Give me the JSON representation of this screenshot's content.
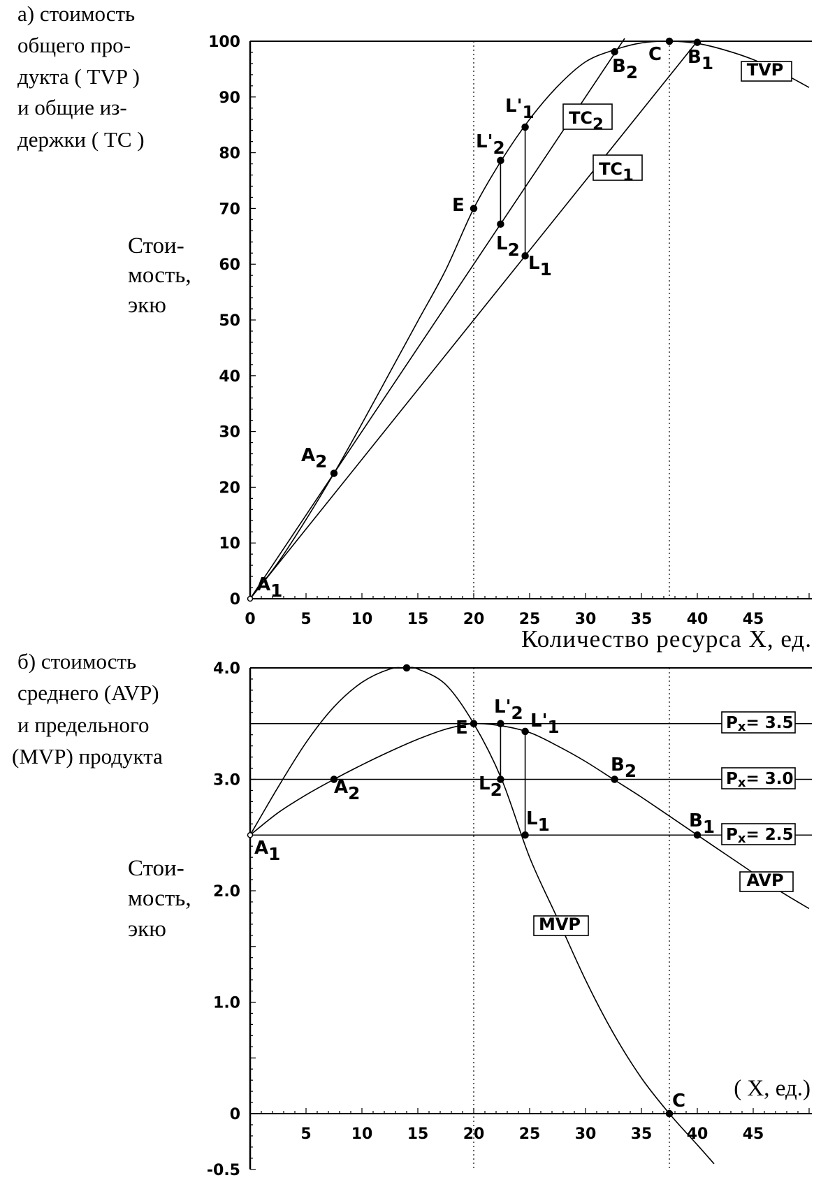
{
  "chart_data": [
    {
      "id": "top",
      "type": "line",
      "panel_title_lines": [
        "а)  стоимость",
        "общего про-",
        "дукта ( TVP )",
        "и  общие  из-",
        "держки ( TC )"
      ],
      "ylabel_lines": [
        "Стои-",
        "мость,",
        "экю"
      ],
      "xlabel": "Количество  ресурса  X,  ед.",
      "xlim": [
        0,
        50
      ],
      "ylim": [
        0,
        100
      ],
      "xticks": [
        0,
        5,
        10,
        15,
        20,
        25,
        30,
        35,
        40,
        45
      ],
      "yticks": [
        0,
        10,
        20,
        30,
        40,
        50,
        60,
        70,
        80,
        90,
        100
      ],
      "ytick_labels": [
        "0",
        "10",
        "20",
        "30",
        "40",
        "50",
        "60",
        "70",
        "80",
        "90",
        "100"
      ],
      "vlines": [
        20,
        37.5
      ],
      "series": [
        {
          "name": "TVP",
          "x": [
            0,
            2.5,
            5,
            7.5,
            10,
            12.5,
            15,
            17.5,
            20,
            22.5,
            25,
            27.5,
            30,
            32.5,
            35,
            37.5,
            40,
            42.5,
            45,
            47.5,
            50
          ],
          "values": [
            0,
            6.5,
            14.2,
            22.5,
            31.4,
            40.6,
            49.8,
            59.0,
            70.0,
            78.7,
            86.0,
            91.9,
            96.3,
            98.4,
            99.7,
            100,
            99.6,
            98.4,
            96.7,
            94.4,
            91.7
          ]
        },
        {
          "name": "TC₂",
          "x": [
            0,
            33.5
          ],
          "values": [
            0,
            100.5
          ]
        },
        {
          "name": "TC₁",
          "x": [
            0,
            40
          ],
          "values": [
            0,
            100
          ]
        }
      ],
      "points": [
        {
          "label": "A₁",
          "x": 0,
          "y": 0
        },
        {
          "label": "A₂",
          "x": 7.5,
          "y": 22.5
        },
        {
          "label": "E",
          "x": 20,
          "y": 70
        },
        {
          "label": "L₂'",
          "x": 22.4,
          "y": 78.6
        },
        {
          "label": "L₂",
          "x": 22.4,
          "y": 67.2
        },
        {
          "label": "L₁'",
          "x": 24.6,
          "y": 84.6
        },
        {
          "label": "L₁",
          "x": 24.6,
          "y": 61.5
        },
        {
          "label": "B₂",
          "x": 32.6,
          "y": 98.1
        },
        {
          "label": "C",
          "x": 37.5,
          "y": 100
        },
        {
          "label": "B₁",
          "x": 40,
          "y": 99.8
        }
      ],
      "segments": [
        [
          22.4,
          67.2,
          22.4,
          78.6
        ],
        [
          24.6,
          61.5,
          24.6,
          84.6
        ]
      ],
      "legend_boxes": [
        "TVP",
        "TC₂",
        "TC₁"
      ]
    },
    {
      "id": "bottom",
      "type": "line",
      "panel_title_lines": [
        "б)  стоимость",
        "среднего (AVP)",
        "и  предельного",
        "(MVP) продукта"
      ],
      "ylabel_lines": [
        "Стои-",
        "мость,",
        "экю"
      ],
      "xlabel": "( X,  ед.)",
      "xlim": [
        0,
        50
      ],
      "ylim": [
        -0.5,
        4.0
      ],
      "xticks": [
        5,
        10,
        15,
        20,
        25,
        30,
        35,
        40,
        45
      ],
      "yticks": [
        -0.5,
        0,
        1.0,
        2.0,
        3.0,
        4.0
      ],
      "ytick_labels": [
        "-0.5",
        "0",
        "1.0",
        "2.0",
        "3.0",
        "4.0"
      ],
      "vlines": [
        20,
        37.5
      ],
      "hlines": [
        3.5,
        3.0,
        2.5
      ],
      "series": [
        {
          "name": "AVP",
          "x": [
            0,
            2.5,
            5,
            7.5,
            10,
            12.5,
            15,
            17.5,
            20,
            22.5,
            25,
            27.5,
            30,
            32.5,
            35,
            37.5,
            40,
            42.5,
            45,
            47.5,
            50
          ],
          "values": [
            2.5,
            2.7,
            2.86,
            3.0,
            3.13,
            3.25,
            3.36,
            3.45,
            3.5,
            3.48,
            3.42,
            3.3,
            3.16,
            3.0,
            2.84,
            2.67,
            2.5,
            2.33,
            2.16,
            1.99,
            1.84
          ]
        },
        {
          "name": "MVP",
          "x": [
            0,
            2.5,
            5,
            7.5,
            10,
            12.5,
            14,
            15,
            17.5,
            20,
            22.5,
            25,
            27.5,
            30,
            32.5,
            35,
            37.5,
            40,
            41.5
          ],
          "values": [
            2.5,
            2.93,
            3.33,
            3.65,
            3.87,
            3.99,
            4.0,
            3.99,
            3.85,
            3.5,
            3.0,
            2.3,
            1.75,
            1.2,
            0.72,
            0.32,
            0.0,
            -0.28,
            -0.45
          ]
        }
      ],
      "points": [
        {
          "label": "A₁",
          "x": 0,
          "y": 2.5
        },
        {
          "label": "A₂",
          "x": 7.5,
          "y": 3.0
        },
        {
          "label": "",
          "x": 14,
          "y": 4.0
        },
        {
          "label": "E",
          "x": 20,
          "y": 3.5
        },
        {
          "label": "L₂'",
          "x": 22.4,
          "y": 3.5
        },
        {
          "label": "L₂",
          "x": 22.4,
          "y": 3.0
        },
        {
          "label": "L₁'",
          "x": 24.6,
          "y": 3.43
        },
        {
          "label": "L₁",
          "x": 24.6,
          "y": 2.5
        },
        {
          "label": "B₂",
          "x": 32.6,
          "y": 3.0
        },
        {
          "label": "B₁",
          "x": 40,
          "y": 2.5
        },
        {
          "label": "C",
          "x": 37.5,
          "y": 0
        }
      ],
      "segments": [
        [
          22.4,
          3.0,
          22.4,
          3.5
        ],
        [
          24.6,
          2.5,
          24.6,
          3.43
        ]
      ],
      "legend_boxes": [
        "Px= 3.5",
        "Px= 3.0",
        "Px= 2.5",
        "AVP",
        "MVP"
      ]
    }
  ]
}
